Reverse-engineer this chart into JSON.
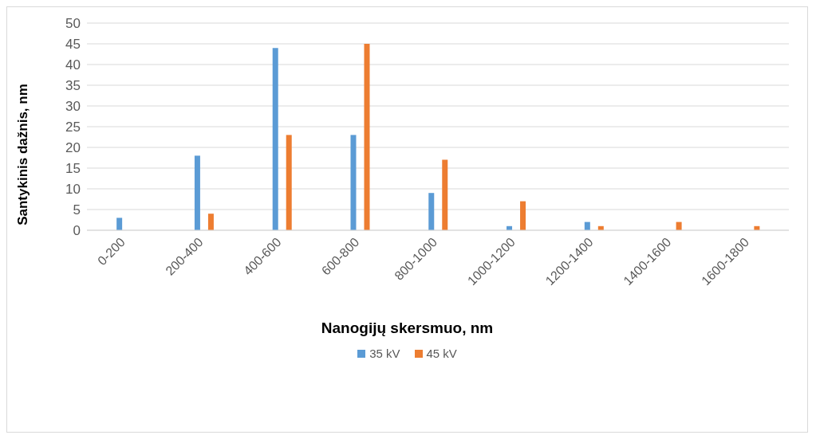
{
  "chart_data": {
    "type": "bar",
    "xlabel": "Nanogijų skersmuo, nm",
    "ylabel": "Santykinis dažnis, nm",
    "categories": [
      "0-200",
      "200-400",
      "400-600",
      "600-800",
      "800-1000",
      "1000-1200",
      "1200-1400",
      "1400-1600",
      "1600-1800"
    ],
    "series": [
      {
        "name": "35 kV",
        "color": "#5b9bd5",
        "values": [
          3,
          18,
          44,
          23,
          9,
          1,
          2,
          0,
          0
        ]
      },
      {
        "name": "45 kV",
        "color": "#ed7d31",
        "values": [
          0,
          4,
          23,
          45,
          17,
          7,
          1,
          2,
          1
        ]
      }
    ],
    "ylim": [
      0,
      50
    ],
    "yticks": [
      0,
      5,
      10,
      15,
      20,
      25,
      30,
      35,
      40,
      45,
      50
    ],
    "grid": "y",
    "legend": "bottom"
  }
}
